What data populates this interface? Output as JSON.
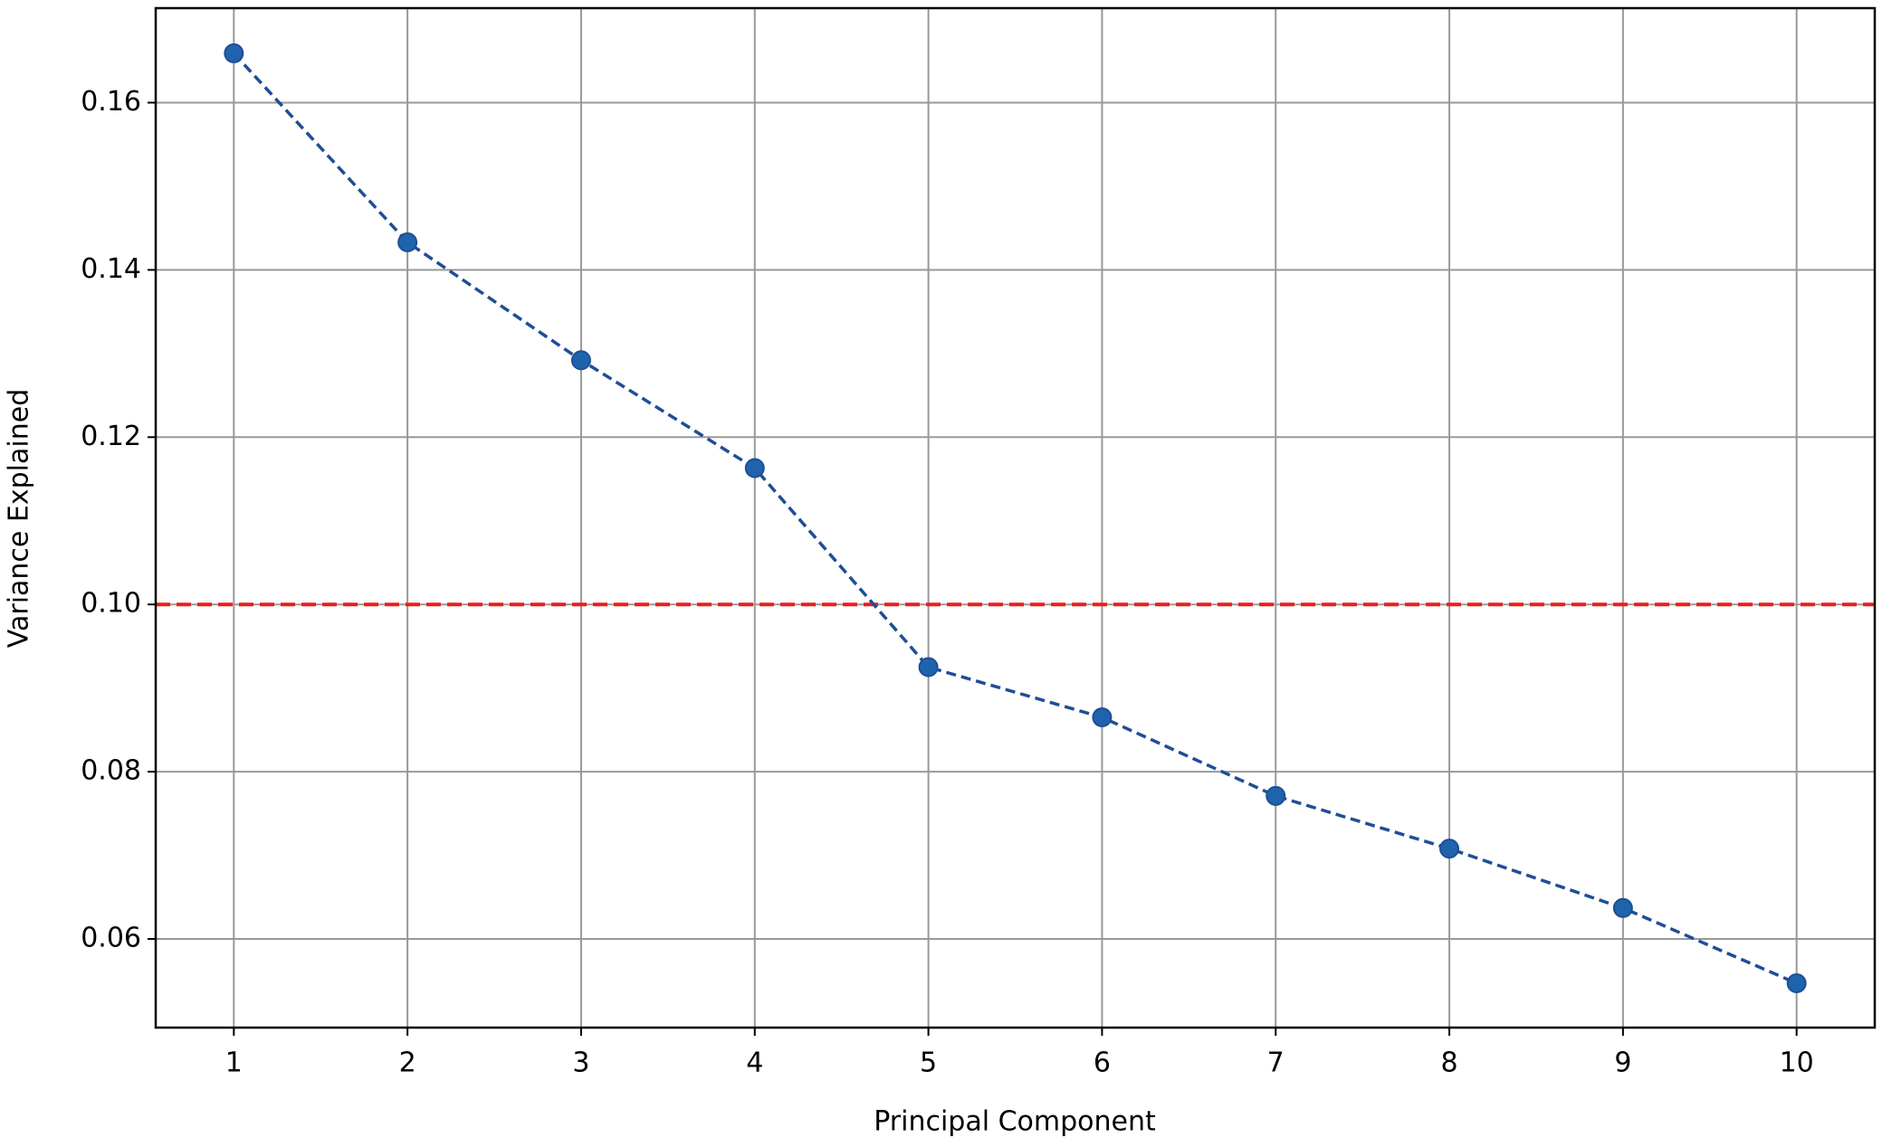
{
  "chart_data": {
    "type": "line",
    "x_label": "Principal Component",
    "y_label": "Variance Explained",
    "x": [
      1,
      2,
      3,
      4,
      5,
      6,
      7,
      8,
      9,
      10
    ],
    "series": [
      {
        "color": "#1f4e96",
        "marker_color": "#1f63ad",
        "values": [
          0.1659,
          0.1433,
          0.1292,
          0.1163,
          0.0925,
          0.0865,
          0.0771,
          0.0708,
          0.0637,
          0.0547
        ]
      }
    ],
    "xlim": [
      0.55,
      10.45
    ],
    "ylim": [
      0.0494,
      0.1713
    ],
    "xticks": [
      1,
      2,
      3,
      4,
      5,
      6,
      7,
      8,
      9,
      10
    ],
    "yticks": [
      0.06,
      0.08,
      {
        "value": 0.1,
        "label": "0.10"
      },
      0.12,
      0.14,
      0.16
    ],
    "grid": true,
    "hline": {
      "value": 0.1,
      "color": "#ee1c1c"
    }
  }
}
